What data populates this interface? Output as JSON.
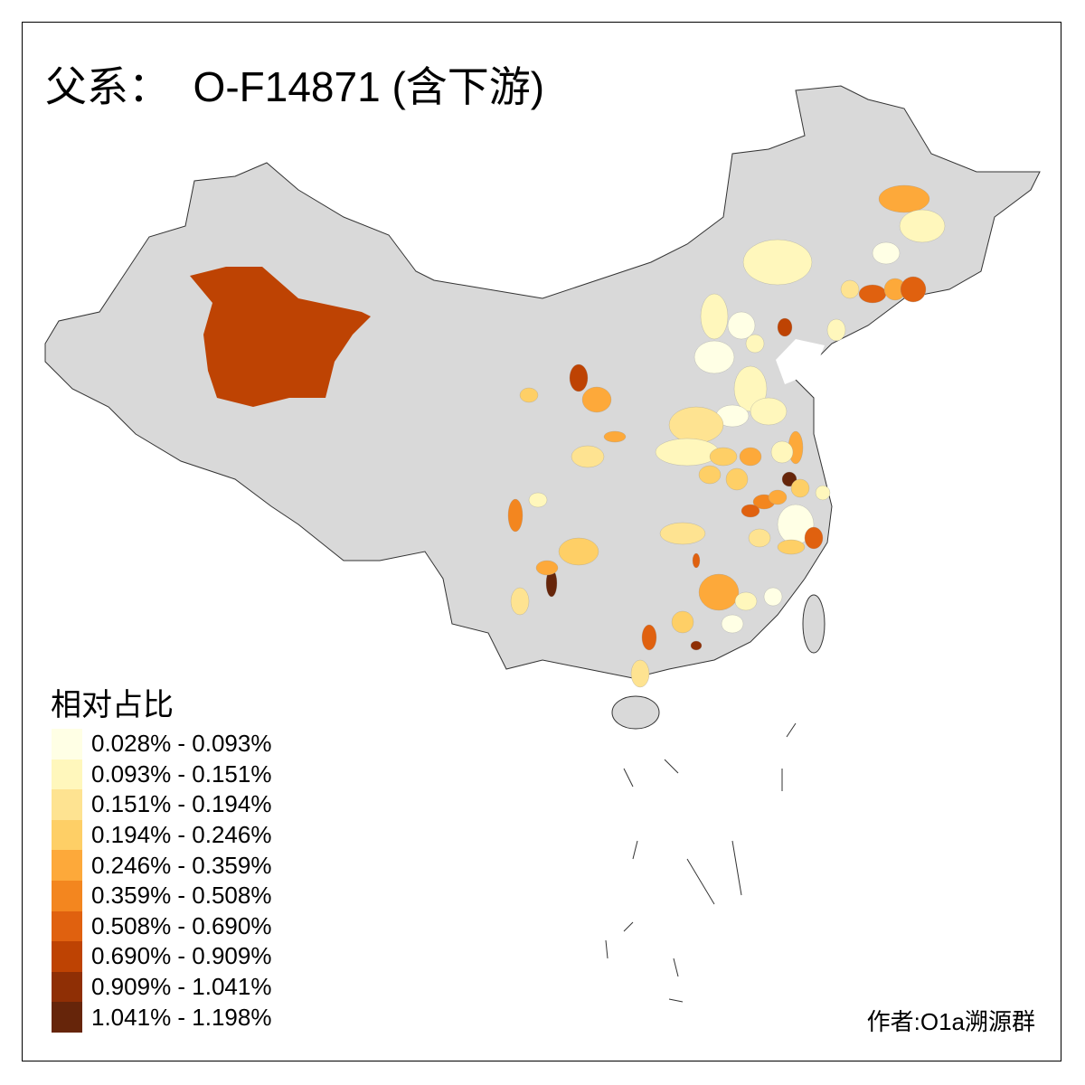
{
  "title": "父系：  O-F14871 (含下游)",
  "legend": {
    "title": "相对占比",
    "items": [
      {
        "label": "0.028% - 0.093%",
        "color": "#FFFFE5"
      },
      {
        "label": "0.093% - 0.151%",
        "color": "#FFF7BC"
      },
      {
        "label": "0.151% - 0.194%",
        "color": "#FEE391"
      },
      {
        "label": "0.194% - 0.246%",
        "color": "#FECF66"
      },
      {
        "label": "0.246% - 0.359%",
        "color": "#FDA93A"
      },
      {
        "label": "0.359% - 0.508%",
        "color": "#F3861F"
      },
      {
        "label": "0.508% - 0.690%",
        "color": "#E0610F"
      },
      {
        "label": "0.690% - 0.909%",
        "color": "#BE4303"
      },
      {
        "label": "0.909% - 1.041%",
        "color": "#8F2F05"
      },
      {
        "label": "1.041% - 1.198%",
        "color": "#66250A"
      }
    ]
  },
  "no_data_color": "#D9D9D9",
  "credit": "作者:O1a溯源群"
}
